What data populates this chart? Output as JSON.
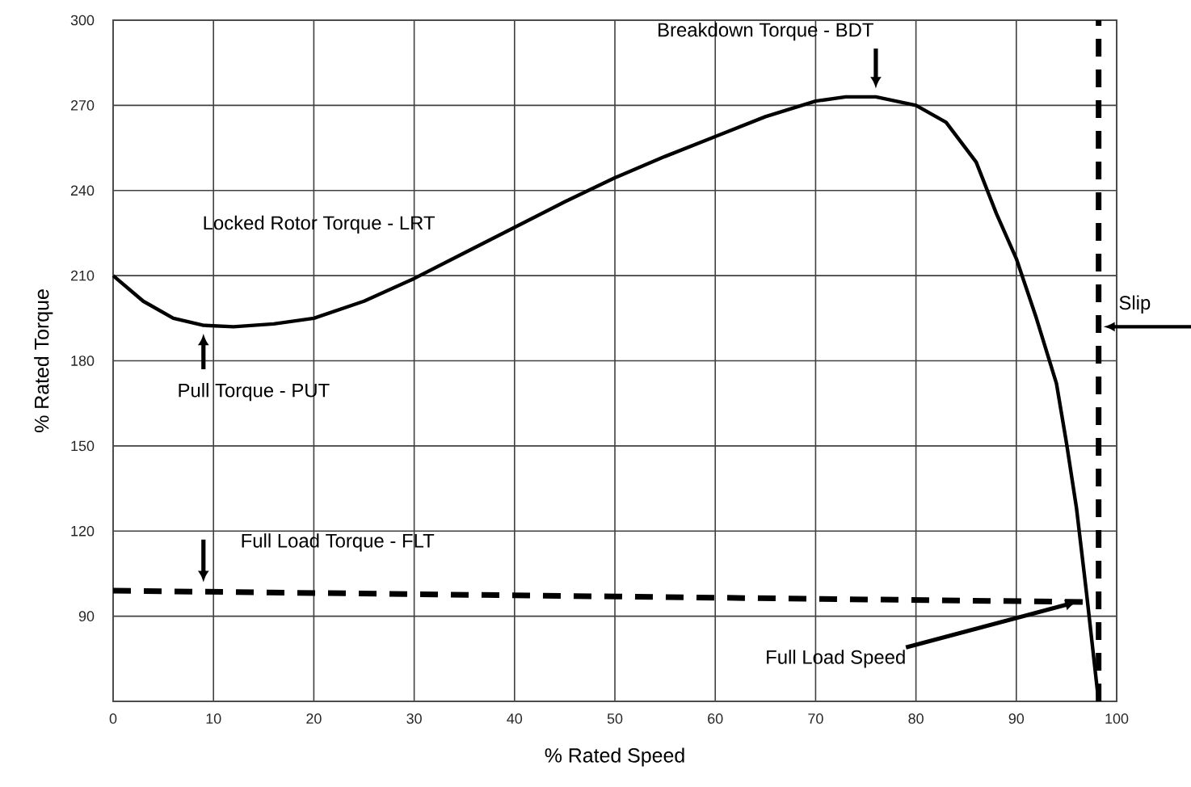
{
  "chart_data": {
    "type": "line",
    "xlabel": "% Rated Speed",
    "ylabel": "% Rated Torque",
    "xlim": [
      0,
      100
    ],
    "ylim": [
      60,
      300
    ],
    "xticks": [
      0,
      10,
      20,
      30,
      40,
      50,
      60,
      70,
      80,
      90,
      100
    ],
    "yticks": [
      90,
      120,
      150,
      180,
      210,
      240,
      270,
      300
    ],
    "grid": true,
    "series": [
      {
        "color": "#000000",
        "line_style": "solid",
        "x": [
          0,
          3,
          6,
          9,
          12,
          16,
          20,
          25,
          30,
          35,
          40,
          45,
          50,
          55,
          60,
          65,
          70,
          73,
          76,
          80,
          83,
          86,
          88,
          90,
          92,
          94,
          95,
          96,
          97,
          98.2
        ],
        "values": [
          210,
          201,
          195,
          192.5,
          192,
          193,
          195,
          201,
          209,
          218,
          227,
          236,
          244.5,
          252,
          259,
          266,
          271.5,
          273,
          273,
          270,
          264,
          250,
          232,
          216,
          195,
          172,
          151,
          128,
          98,
          60
        ]
      },
      {
        "color": "#000000",
        "line_style": "dashed",
        "x": [
          0,
          97
        ],
        "values": [
          99,
          95
        ]
      }
    ],
    "ref_lines": [
      {
        "axis": "x",
        "value": 98.2,
        "label": "Slip",
        "color": "#000000",
        "line_style": "dashed"
      }
    ],
    "annotations": [
      {
        "text": "Breakdown Torque - BDT",
        "x": 76,
        "y": 273
      },
      "Locked Rotor Torque - LRT",
      {
        "text": "Pull Torque - PUT",
        "x": 9,
        "y": 192
      },
      {
        "text": "Full Load Torque - FLT",
        "x": 9,
        "y": 99
      },
      {
        "text": "Full Load Speed",
        "x": 96,
        "y": 95
      }
    ]
  }
}
